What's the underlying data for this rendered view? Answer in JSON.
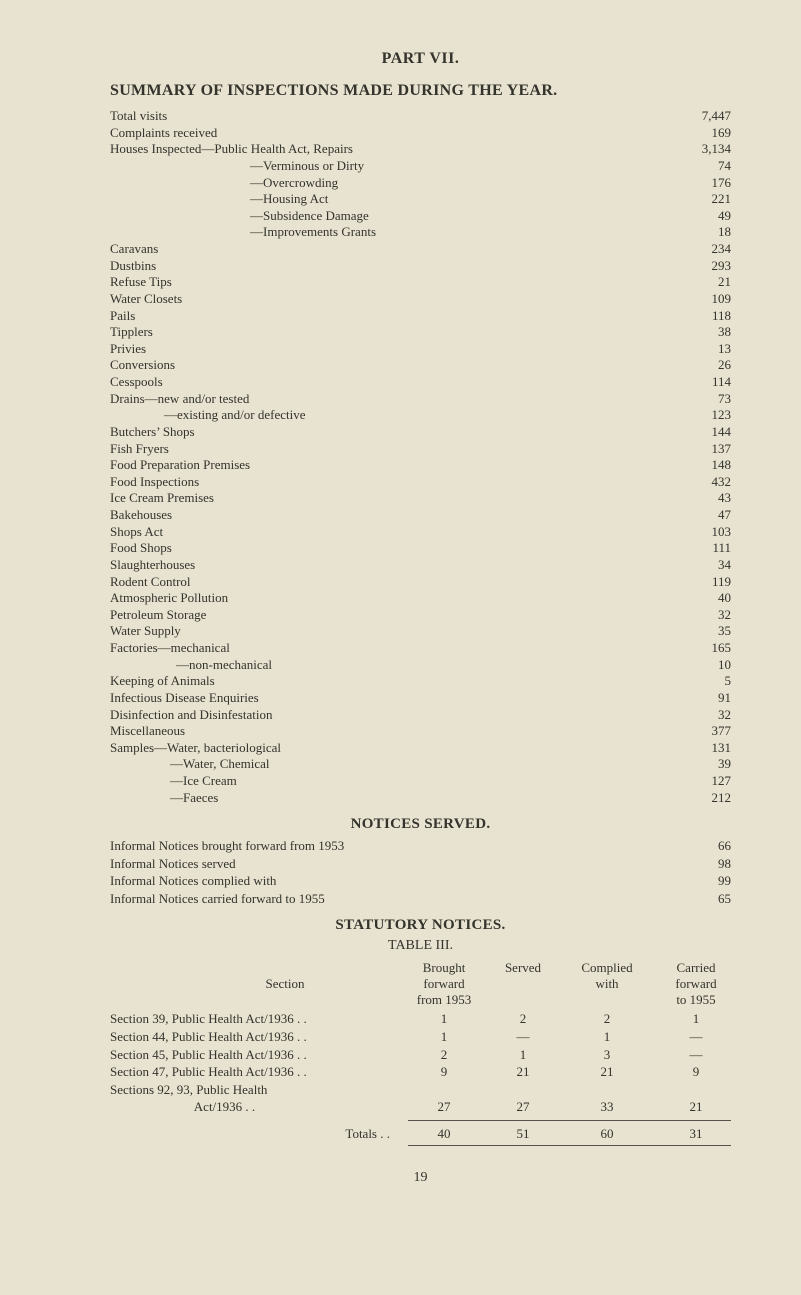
{
  "part_title": "PART VII.",
  "summary_title": "SUMMARY OF INSPECTIONS MADE DURING THE YEAR.",
  "items": [
    {
      "label": "Total visits",
      "indent": 0,
      "value": "7,447"
    },
    {
      "label": "Complaints received",
      "indent": 0,
      "value": "169"
    },
    {
      "label": "Houses Inspected—Public Health Act, Repairs",
      "indent": 0,
      "value": "3,134"
    },
    {
      "label": "—Verminous or Dirty",
      "indent": 140,
      "value": "74"
    },
    {
      "label": "—Overcrowding",
      "indent": 140,
      "value": "176"
    },
    {
      "label": "—Housing Act",
      "indent": 140,
      "value": "221"
    },
    {
      "label": "—Subsidence Damage",
      "indent": 140,
      "value": "49"
    },
    {
      "label": "—Improvements Grants",
      "indent": 140,
      "value": "18"
    },
    {
      "label": "Caravans",
      "indent": 0,
      "value": "234"
    },
    {
      "label": "Dustbins",
      "indent": 0,
      "value": "293"
    },
    {
      "label": "Refuse Tips",
      "indent": 0,
      "value": "21"
    },
    {
      "label": "Water Closets",
      "indent": 0,
      "value": "109"
    },
    {
      "label": "Pails",
      "indent": 0,
      "value": "118"
    },
    {
      "label": "Tipplers",
      "indent": 0,
      "value": "38"
    },
    {
      "label": "Privies",
      "indent": 0,
      "value": "13"
    },
    {
      "label": "Conversions",
      "indent": 0,
      "value": "26"
    },
    {
      "label": "Cesspools",
      "indent": 0,
      "value": "114"
    },
    {
      "label": "Drains—new and/or tested",
      "indent": 0,
      "value": "73"
    },
    {
      "label": "—existing and/or defective",
      "indent": 54,
      "value": "123"
    },
    {
      "label": "Butchers’ Shops",
      "indent": 0,
      "value": "144"
    },
    {
      "label": "Fish Fryers",
      "indent": 0,
      "value": "137"
    },
    {
      "label": "Food Preparation Premises",
      "indent": 0,
      "value": "148"
    },
    {
      "label": "Food Inspections",
      "indent": 0,
      "value": "432"
    },
    {
      "label": "Ice Cream Premises",
      "indent": 0,
      "value": "43"
    },
    {
      "label": "Bakehouses",
      "indent": 0,
      "value": "47"
    },
    {
      "label": "Shops Act",
      "indent": 0,
      "value": "103"
    },
    {
      "label": "Food Shops",
      "indent": 0,
      "value": "111"
    },
    {
      "label": "Slaughterhouses",
      "indent": 0,
      "value": "34"
    },
    {
      "label": "Rodent Control",
      "indent": 0,
      "value": "119"
    },
    {
      "label": "Atmospheric Pollution",
      "indent": 0,
      "value": "40"
    },
    {
      "label": "Petroleum Storage",
      "indent": 0,
      "value": "32"
    },
    {
      "label": "Water Supply",
      "indent": 0,
      "value": "35"
    },
    {
      "label": "Factories—mechanical",
      "indent": 0,
      "value": "165"
    },
    {
      "label": "—non-mechanical",
      "indent": 66,
      "value": "10"
    },
    {
      "label": "Keeping of Animals",
      "indent": 0,
      "value": "5"
    },
    {
      "label": "Infectious Disease Enquiries",
      "indent": 0,
      "value": "91"
    },
    {
      "label": "Disinfection and Disinfestation",
      "indent": 0,
      "value": "32"
    },
    {
      "label": "Miscellaneous",
      "indent": 0,
      "value": "377"
    },
    {
      "label": "Samples—Water, bacteriological",
      "indent": 0,
      "value": "131"
    },
    {
      "label": "—Water, Chemical",
      "indent": 60,
      "value": "39"
    },
    {
      "label": "—Ice Cream",
      "indent": 60,
      "value": "127"
    },
    {
      "label": "—Faeces",
      "indent": 60,
      "value": "212"
    }
  ],
  "notices_title": "NOTICES SERVED.",
  "notices": [
    {
      "label": "Informal Notices brought forward from 1953",
      "value": "66"
    },
    {
      "label": "Informal Notices served",
      "value": "98"
    },
    {
      "label": "Informal Notices complied with",
      "value": "99"
    },
    {
      "label": "Informal Notices carried forward to 1955",
      "value": "65"
    }
  ],
  "statutory_title": "STATUTORY NOTICES.",
  "table3_title": "TABLE III.",
  "table3": {
    "header": {
      "section": "Section",
      "c1a": "Brought",
      "c1b": "forward",
      "c1c": "from 1953",
      "c2": "Served",
      "c3a": "Complied",
      "c3b": "with",
      "c4a": "Carried",
      "c4b": "forward",
      "c4c": "to 1955"
    },
    "rows": [
      {
        "name": "Section 39, Public Health Act/1936 . .",
        "bf": "1",
        "served": "2",
        "complied": "2",
        "carried": "1"
      },
      {
        "name": "Section 44, Public Health Act/1936 . .",
        "bf": "1",
        "served": "—",
        "complied": "1",
        "carried": "—"
      },
      {
        "name": "Section 45, Public Health Act/1936 . .",
        "bf": "2",
        "served": "1",
        "complied": "3",
        "carried": "—"
      },
      {
        "name": "Section 47, Public Health Act/1936 . .",
        "bf": "9",
        "served": "21",
        "complied": "21",
        "carried": "9"
      },
      {
        "name": "Sections 92, 93, Public Health",
        "bf": "",
        "served": "",
        "complied": "",
        "carried": ""
      },
      {
        "name": "                          Act/1936 . .",
        "bf": "27",
        "served": "27",
        "complied": "33",
        "carried": "21"
      }
    ],
    "totals": {
      "name": "Totals . .",
      "bf": "40",
      "served": "51",
      "complied": "60",
      "carried": "31"
    }
  },
  "page_number": "19"
}
